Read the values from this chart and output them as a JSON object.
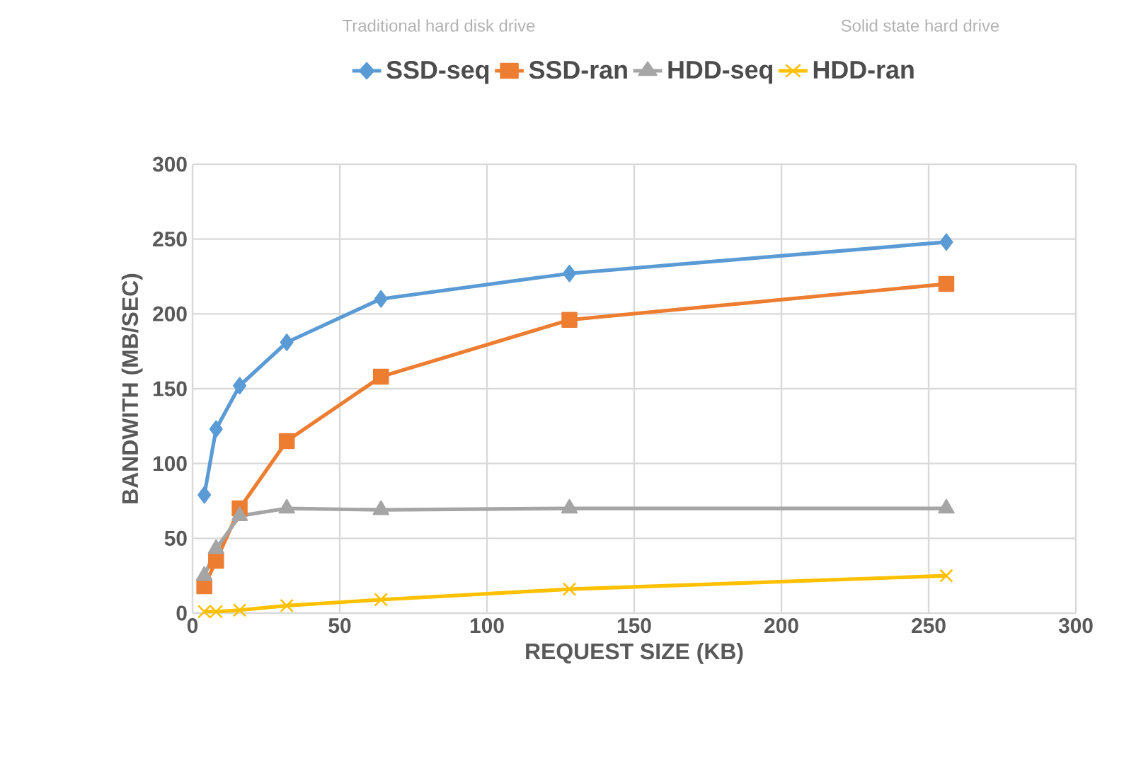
{
  "chart_data": {
    "type": "line",
    "xlabel": "REQUEST SIZE (KB)",
    "ylabel": "BANDWITH (MB/SEC)",
    "annotations": [
      "Traditional hard disk drive",
      "Solid state hard drive"
    ],
    "x": [
      4,
      8,
      16,
      32,
      64,
      128,
      256
    ],
    "series": [
      {
        "name": "SSD-seq",
        "color": "#5b9bd5",
        "marker": "diamond",
        "values": [
          79,
          123,
          152,
          181,
          210,
          227,
          248
        ]
      },
      {
        "name": "SSD-ran",
        "color": "#ed7d31",
        "marker": "square",
        "values": [
          18,
          35,
          70,
          115,
          158,
          196,
          220
        ]
      },
      {
        "name": "HDD-seq",
        "color": "#a5a5a5",
        "marker": "triangle",
        "values": [
          25,
          43,
          65,
          70,
          69,
          70,
          70
        ]
      },
      {
        "name": "HDD-ran",
        "color": "#ffc000",
        "marker": "cross",
        "values": [
          1,
          1,
          2,
          5,
          9,
          16,
          25
        ]
      }
    ],
    "xlim": [
      0,
      300
    ],
    "ylim": [
      0,
      300
    ],
    "xticks": [
      0,
      50,
      100,
      150,
      200,
      250,
      300
    ],
    "yticks": [
      0,
      50,
      100,
      150,
      200,
      250,
      300
    ],
    "grid": true,
    "legend": "top"
  }
}
